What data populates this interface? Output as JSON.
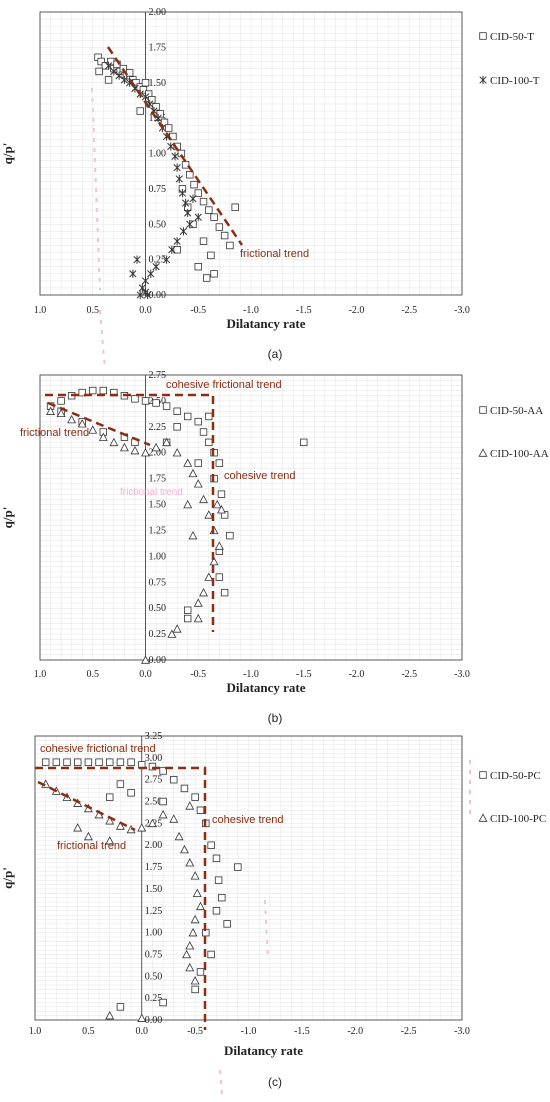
{
  "figure": {
    "captions": [
      "(a)",
      "(b)",
      "(c)"
    ]
  },
  "chart_data": [
    {
      "type": "scatter",
      "panel": "(a)",
      "xlabel": "Dilatancy rate",
      "ylabel": "q/p'",
      "xlim": [
        1.0,
        -3.0
      ],
      "ylim": [
        0,
        2.0
      ],
      "x_ticks": [
        "1.0",
        "0.5",
        "0.0",
        "-0.5",
        "-1.0",
        "-1.5",
        "-2.0",
        "-2.5",
        "-3.0"
      ],
      "y_ticks": [
        "0.00",
        "0.25",
        "0.50",
        "0.75",
        "1.00",
        "1.25",
        "1.50",
        "1.75",
        "2.00"
      ],
      "grid": true,
      "legend": "right",
      "series": [
        {
          "name": "CID-50-T",
          "marker": "square",
          "points": [
            [
              0.45,
              1.68
            ],
            [
              0.42,
              1.65
            ],
            [
              0.38,
              1.62
            ],
            [
              0.33,
              1.65
            ],
            [
              0.3,
              1.6
            ],
            [
              0.27,
              1.63
            ],
            [
              0.24,
              1.58
            ],
            [
              0.21,
              1.6
            ],
            [
              0.18,
              1.55
            ],
            [
              0.15,
              1.57
            ],
            [
              0.12,
              1.52
            ],
            [
              0.09,
              1.5
            ],
            [
              0.05,
              1.47
            ],
            [
              0.02,
              1.45
            ],
            [
              0.0,
              1.5
            ],
            [
              -0.03,
              1.42
            ],
            [
              -0.06,
              1.38
            ],
            [
              -0.1,
              1.33
            ],
            [
              -0.14,
              1.28
            ],
            [
              -0.18,
              1.22
            ],
            [
              -0.22,
              1.18
            ],
            [
              -0.26,
              1.12
            ],
            [
              -0.3,
              1.05
            ],
            [
              -0.34,
              1.0
            ],
            [
              -0.38,
              0.92
            ],
            [
              -0.42,
              0.85
            ],
            [
              -0.46,
              0.78
            ],
            [
              -0.5,
              0.72
            ],
            [
              -0.55,
              0.66
            ],
            [
              -0.6,
              0.6
            ],
            [
              -0.65,
              0.55
            ],
            [
              -0.7,
              0.48
            ],
            [
              -0.75,
              0.42
            ],
            [
              -0.8,
              0.35
            ],
            [
              -0.85,
              0.62
            ],
            [
              -0.62,
              0.28
            ],
            [
              -0.65,
              0.15
            ],
            [
              -0.58,
              0.12
            ],
            [
              -0.5,
              0.2
            ],
            [
              -0.55,
              0.38
            ],
            [
              -0.45,
              0.5
            ],
            [
              -0.4,
              0.62
            ],
            [
              -0.3,
              0.32
            ],
            [
              -0.35,
              0.75
            ],
            [
              0.44,
              1.58
            ],
            [
              0.35,
              1.52
            ],
            [
              0.05,
              1.3
            ]
          ]
        },
        {
          "name": "CID-100-T",
          "marker": "asterisk",
          "points": [
            [
              0.35,
              1.62
            ],
            [
              0.3,
              1.58
            ],
            [
              0.25,
              1.55
            ],
            [
              0.2,
              1.52
            ],
            [
              0.15,
              1.5
            ],
            [
              0.1,
              1.46
            ],
            [
              0.05,
              1.42
            ],
            [
              0.0,
              1.4
            ],
            [
              -0.04,
              1.35
            ],
            [
              -0.08,
              1.3
            ],
            [
              -0.12,
              1.25
            ],
            [
              -0.16,
              1.18
            ],
            [
              -0.2,
              1.12
            ],
            [
              -0.24,
              1.05
            ],
            [
              -0.28,
              0.98
            ],
            [
              -0.3,
              0.9
            ],
            [
              -0.32,
              0.82
            ],
            [
              -0.35,
              0.72
            ],
            [
              -0.38,
              0.65
            ],
            [
              -0.4,
              0.58
            ],
            [
              -0.42,
              0.5
            ],
            [
              -0.36,
              0.45
            ],
            [
              -0.3,
              0.38
            ],
            [
              -0.25,
              0.32
            ],
            [
              -0.2,
              0.25
            ],
            [
              -0.1,
              0.2
            ],
            [
              -0.05,
              0.15
            ],
            [
              0.0,
              0.1
            ],
            [
              0.03,
              0.05
            ],
            [
              0.05,
              0.0
            ],
            [
              0.0,
              0.02
            ],
            [
              -0.02,
              0.0
            ],
            [
              0.08,
              0.25
            ],
            [
              0.12,
              0.15
            ],
            [
              -0.45,
              0.68
            ],
            [
              -0.5,
              0.55
            ]
          ]
        }
      ],
      "annotations": [
        "frictional trend"
      ]
    },
    {
      "type": "scatter",
      "panel": "(b)",
      "xlabel": "Dilatancy rate",
      "ylabel": "q/p'",
      "xlim": [
        1.0,
        -3.0
      ],
      "ylim": [
        0,
        2.75
      ],
      "x_ticks": [
        "1.0",
        "0.5",
        "0.0",
        "-0.5",
        "-1.0",
        "-1.5",
        "-2.0",
        "-2.5",
        "-3.0"
      ],
      "y_ticks": [
        "0.00",
        "0.25",
        "0.50",
        "0.75",
        "1.00",
        "1.25",
        "1.50",
        "1.75",
        "2.00",
        "2.25",
        "2.50",
        "2.75"
      ],
      "grid": true,
      "legend": "right",
      "series": [
        {
          "name": "CID-50-AA",
          "marker": "square",
          "points": [
            [
              0.9,
              2.45
            ],
            [
              0.8,
              2.5
            ],
            [
              0.7,
              2.55
            ],
            [
              0.6,
              2.58
            ],
            [
              0.5,
              2.6
            ],
            [
              0.4,
              2.6
            ],
            [
              0.3,
              2.58
            ],
            [
              0.2,
              2.55
            ],
            [
              0.1,
              2.52
            ],
            [
              0.0,
              2.5
            ],
            [
              -0.1,
              2.48
            ],
            [
              -0.2,
              2.45
            ],
            [
              -0.3,
              2.4
            ],
            [
              -0.4,
              2.35
            ],
            [
              -0.5,
              2.3
            ],
            [
              -0.55,
              2.2
            ],
            [
              -0.6,
              2.1
            ],
            [
              -0.65,
              2.0
            ],
            [
              -0.7,
              1.9
            ],
            [
              -0.72,
              1.6
            ],
            [
              -0.75,
              1.4
            ],
            [
              -0.8,
              1.2
            ],
            [
              -0.7,
              1.05
            ],
            [
              -0.7,
              0.8
            ],
            [
              -0.75,
              0.65
            ],
            [
              -0.4,
              0.48
            ],
            [
              -0.4,
              0.4
            ],
            [
              -1.5,
              2.1
            ],
            [
              -0.6,
              2.35
            ],
            [
              -0.3,
              2.25
            ],
            [
              -0.2,
              2.1
            ],
            [
              0.8,
              2.4
            ],
            [
              0.6,
              2.3
            ],
            [
              0.4,
              2.2
            ],
            [
              0.2,
              2.15
            ],
            [
              0.1,
              2.1
            ],
            [
              -0.5,
              1.9
            ],
            [
              -0.65,
              1.75
            ]
          ]
        },
        {
          "name": "CID-100-AA",
          "marker": "triangle",
          "points": [
            [
              0.9,
              2.4
            ],
            [
              0.8,
              2.38
            ],
            [
              0.7,
              2.32
            ],
            [
              0.6,
              2.28
            ],
            [
              0.5,
              2.22
            ],
            [
              0.4,
              2.15
            ],
            [
              0.3,
              2.1
            ],
            [
              0.2,
              2.05
            ],
            [
              0.1,
              2.02
            ],
            [
              0.0,
              2.0
            ],
            [
              -0.1,
              2.05
            ],
            [
              -0.2,
              2.1
            ],
            [
              -0.3,
              2.0
            ],
            [
              -0.4,
              1.9
            ],
            [
              -0.45,
              1.8
            ],
            [
              -0.5,
              1.7
            ],
            [
              -0.55,
              1.55
            ],
            [
              -0.6,
              1.4
            ],
            [
              -0.65,
              1.25
            ],
            [
              -0.7,
              1.1
            ],
            [
              -0.65,
              0.95
            ],
            [
              -0.6,
              0.8
            ],
            [
              -0.55,
              0.65
            ],
            [
              -0.5,
              0.55
            ],
            [
              -0.5,
              0.4
            ],
            [
              -0.3,
              0.3
            ],
            [
              -0.25,
              0.25
            ],
            [
              0.0,
              0.0
            ],
            [
              -0.68,
              1.5
            ],
            [
              -0.72,
              1.45
            ],
            [
              -0.45,
              1.2
            ],
            [
              -0.4,
              1.5
            ]
          ]
        }
      ],
      "annotations": [
        "cohesive frictional trend",
        "frictional trend",
        "cohesive trend",
        "frictional trend"
      ]
    },
    {
      "type": "scatter",
      "panel": "(c)",
      "xlabel": "Dilatancy rate",
      "ylabel": "q/p'",
      "xlim": [
        1.0,
        -3.0
      ],
      "ylim": [
        0,
        3.25
      ],
      "x_ticks": [
        "1.0",
        "0.5",
        "0.0",
        "-0.5",
        "-1.0",
        "-1.5",
        "-2.0",
        "-2.5",
        "-3.0"
      ],
      "y_ticks": [
        "0.00",
        "0.25",
        "0.50",
        "0.75",
        "1.00",
        "1.25",
        "1.50",
        "1.75",
        "2.00",
        "2.25",
        "2.50",
        "2.75",
        "3.00",
        "3.25"
      ],
      "grid": true,
      "legend": "right",
      "series": [
        {
          "name": "CID-50-PC",
          "marker": "square",
          "points": [
            [
              0.9,
              2.95
            ],
            [
              0.8,
              2.95
            ],
            [
              0.7,
              2.95
            ],
            [
              0.6,
              2.95
            ],
            [
              0.5,
              2.95
            ],
            [
              0.4,
              2.95
            ],
            [
              0.3,
              2.95
            ],
            [
              0.2,
              2.95
            ],
            [
              0.1,
              2.95
            ],
            [
              0.0,
              2.92
            ],
            [
              -0.1,
              2.9
            ],
            [
              -0.2,
              2.85
            ],
            [
              -0.3,
              2.75
            ],
            [
              -0.4,
              2.65
            ],
            [
              -0.5,
              2.55
            ],
            [
              -0.55,
              2.4
            ],
            [
              -0.6,
              2.25
            ],
            [
              -0.65,
              2.0
            ],
            [
              -0.7,
              1.85
            ],
            [
              -0.72,
              1.6
            ],
            [
              -0.75,
              1.4
            ],
            [
              -0.7,
              1.25
            ],
            [
              -0.8,
              1.1
            ],
            [
              -0.6,
              1.0
            ],
            [
              -0.65,
              0.75
            ],
            [
              -0.55,
              0.55
            ],
            [
              -0.5,
              0.35
            ],
            [
              -0.9,
              1.75
            ],
            [
              0.2,
              2.7
            ],
            [
              0.1,
              2.6
            ],
            [
              0.3,
              2.55
            ],
            [
              -0.2,
              2.5
            ],
            [
              0.2,
              0.15
            ],
            [
              -0.2,
              0.2
            ]
          ]
        },
        {
          "name": "CID-100-PC",
          "marker": "triangle",
          "points": [
            [
              0.9,
              2.7
            ],
            [
              0.8,
              2.62
            ],
            [
              0.7,
              2.55
            ],
            [
              0.6,
              2.48
            ],
            [
              0.5,
              2.42
            ],
            [
              0.4,
              2.35
            ],
            [
              0.3,
              2.28
            ],
            [
              0.2,
              2.22
            ],
            [
              0.1,
              2.18
            ],
            [
              0.0,
              2.2
            ],
            [
              -0.1,
              2.25
            ],
            [
              -0.2,
              2.35
            ],
            [
              -0.3,
              2.3
            ],
            [
              -0.35,
              2.1
            ],
            [
              -0.4,
              1.95
            ],
            [
              -0.45,
              1.8
            ],
            [
              -0.5,
              1.65
            ],
            [
              -0.52,
              1.45
            ],
            [
              -0.55,
              1.3
            ],
            [
              -0.5,
              1.15
            ],
            [
              -0.48,
              1.0
            ],
            [
              -0.45,
              0.85
            ],
            [
              -0.42,
              0.75
            ],
            [
              -0.45,
              0.6
            ],
            [
              -0.5,
              0.45
            ],
            [
              0.3,
              0.05
            ],
            [
              0.0,
              0.02
            ],
            [
              0.6,
              2.2
            ],
            [
              0.5,
              2.1
            ],
            [
              0.3,
              2.05
            ],
            [
              -0.45,
              2.45
            ]
          ]
        }
      ],
      "annotations": [
        "cohesive frictional trend",
        "cohesive trend",
        "frictional trend"
      ]
    }
  ]
}
